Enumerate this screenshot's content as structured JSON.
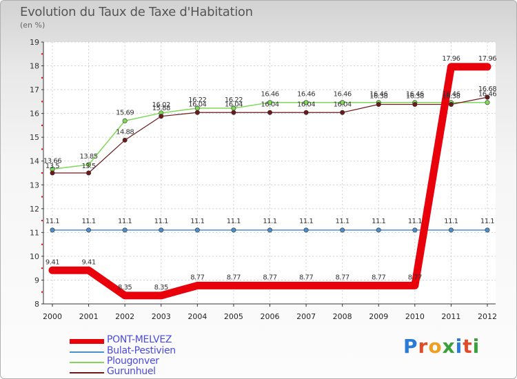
{
  "header": {
    "title": "Evolution du Taux de Taxe d'Habitation",
    "subtitle": "(en %)"
  },
  "chart_data": {
    "type": "line",
    "title": "Evolution du Taux de Taxe d'Habitation",
    "ylabel": "(en %)",
    "xlabel": "",
    "ylim": [
      8,
      19
    ],
    "yticks": [
      "8",
      "9",
      "10",
      "11",
      "12",
      "13",
      "14",
      "15",
      "16",
      "17",
      "18",
      "19"
    ],
    "categories": [
      "2000",
      "2001",
      "2002",
      "2003",
      "2004",
      "2005",
      "2006",
      "2007",
      "2008",
      "2009",
      "2010",
      "2011",
      "2012"
    ],
    "series": [
      {
        "name": "PONT-MELVEZ",
        "color": "#e8000b",
        "values": [
          9.41,
          9.41,
          8.35,
          8.35,
          8.77,
          8.77,
          8.77,
          8.77,
          8.77,
          8.77,
          8.77,
          17.96,
          17.96
        ],
        "labels": [
          "9.41",
          "9.41",
          "8.35",
          "8.35",
          "8.77",
          "8.77",
          "8.77",
          "8.77",
          "8.77",
          "8.77",
          "8.77",
          "17.96",
          "17.96"
        ]
      },
      {
        "name": "Bulat-Pestivien",
        "color": "#4a8ecb",
        "values": [
          11.1,
          11.1,
          11.1,
          11.1,
          11.1,
          11.1,
          11.1,
          11.1,
          11.1,
          11.1,
          11.1,
          11.1,
          11.1
        ],
        "labels": [
          "11.1",
          "11.1",
          "11.1",
          "11.1",
          "11.1",
          "11.1",
          "11.1",
          "11.1",
          "11.1",
          "11.1",
          "11.1",
          "11.1",
          "11.1"
        ]
      },
      {
        "name": "Plougonver",
        "color": "#7fd957",
        "values": [
          13.66,
          13.85,
          15.69,
          16.02,
          16.22,
          16.22,
          16.46,
          16.46,
          16.46,
          16.46,
          16.46,
          16.46,
          16.46
        ],
        "labels": [
          "13.66",
          "13.85",
          "15.69",
          "16.02",
          "16.22",
          "16.22",
          "16.46",
          "16.46",
          "16.46",
          "16.46",
          "16.46",
          "16.46",
          "16.46"
        ]
      },
      {
        "name": "Gurunhuel",
        "color": "#6b1a1a",
        "values": [
          13.5,
          13.5,
          14.88,
          15.88,
          16.04,
          16.04,
          16.04,
          16.04,
          16.04,
          16.38,
          16.38,
          16.38,
          16.68
        ],
        "labels": [
          "13.5",
          "13.5",
          "14.88",
          "15.88",
          "16.04",
          "16.04",
          "16.04",
          "16.04",
          "16.04",
          "16.38",
          "16.38",
          "16.38",
          "16.68"
        ]
      }
    ]
  },
  "legend": {
    "items": [
      "PONT-MELVEZ",
      "Bulat-Pestivien",
      "Plougonver",
      "Gurunhuel"
    ]
  },
  "logo": {
    "letters": [
      "P",
      "r",
      "o",
      "x",
      "i",
      "t",
      "i"
    ],
    "colors": [
      "#2a7ad8",
      "#e24b2a",
      "#f0a020",
      "#3aa03a",
      "#2a7ad8",
      "#e24b2a",
      "#3aa03a"
    ]
  }
}
